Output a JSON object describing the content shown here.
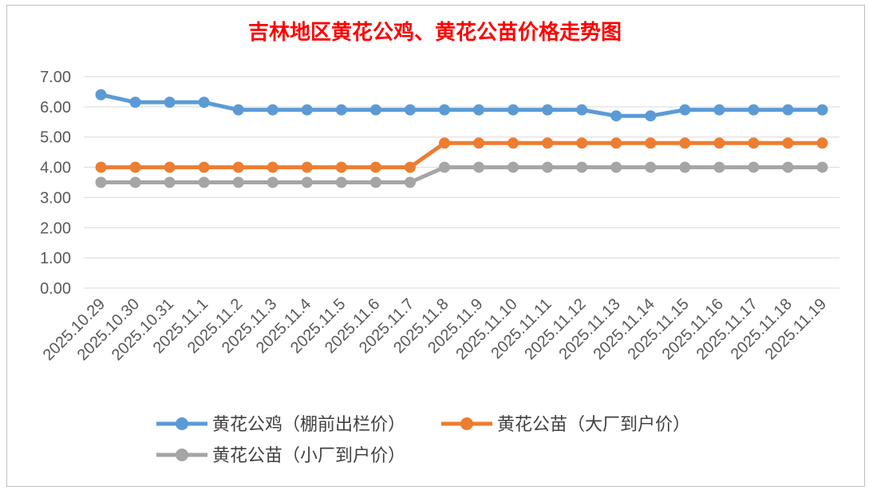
{
  "chart_data": {
    "type": "line",
    "title": "吉林地区黄花公鸡、黄花公苗价格走势图",
    "xlabel": "",
    "ylabel": "",
    "ylim": [
      0,
      7
    ],
    "yticks": [
      "0.00",
      "1.00",
      "2.00",
      "3.00",
      "4.00",
      "5.00",
      "6.00",
      "7.00"
    ],
    "grid": true,
    "legend_position": "bottom",
    "categories": [
      "2025.10.29",
      "2025.10.30",
      "2025.10.31",
      "2025.11.1",
      "2025.11.2",
      "2025.11.3",
      "2025.11.4",
      "2025.11.5",
      "2025.11.6",
      "2025.11.7",
      "2025.11.8",
      "2025.11.9",
      "2025.11.10",
      "2025.11.11",
      "2025.11.12",
      "2025.11.13",
      "2025.11.14",
      "2025.11.15",
      "2025.11.16",
      "2025.11.17",
      "2025.11.18",
      "2025.11.19"
    ],
    "series": [
      {
        "name": "黄花公鸡（棚前出栏价）",
        "color": "#5b9bd5",
        "values": [
          6.4,
          6.15,
          6.15,
          6.15,
          5.9,
          5.9,
          5.9,
          5.9,
          5.9,
          5.9,
          5.9,
          5.9,
          5.9,
          5.9,
          5.9,
          5.7,
          5.7,
          5.9,
          5.9,
          5.9,
          5.9,
          5.9
        ]
      },
      {
        "name": "黄花公苗（大厂到户价）",
        "color": "#ed7d31",
        "values": [
          4.0,
          4.0,
          4.0,
          4.0,
          4.0,
          4.0,
          4.0,
          4.0,
          4.0,
          4.0,
          4.8,
          4.8,
          4.8,
          4.8,
          4.8,
          4.8,
          4.8,
          4.8,
          4.8,
          4.8,
          4.8,
          4.8
        ]
      },
      {
        "name": "黄花公苗（小厂到户价）",
        "color": "#a5a5a5",
        "values": [
          3.5,
          3.5,
          3.5,
          3.5,
          3.5,
          3.5,
          3.5,
          3.5,
          3.5,
          3.5,
          4.0,
          4.0,
          4.0,
          4.0,
          4.0,
          4.0,
          4.0,
          4.0,
          4.0,
          4.0,
          4.0,
          4.0
        ]
      }
    ]
  }
}
